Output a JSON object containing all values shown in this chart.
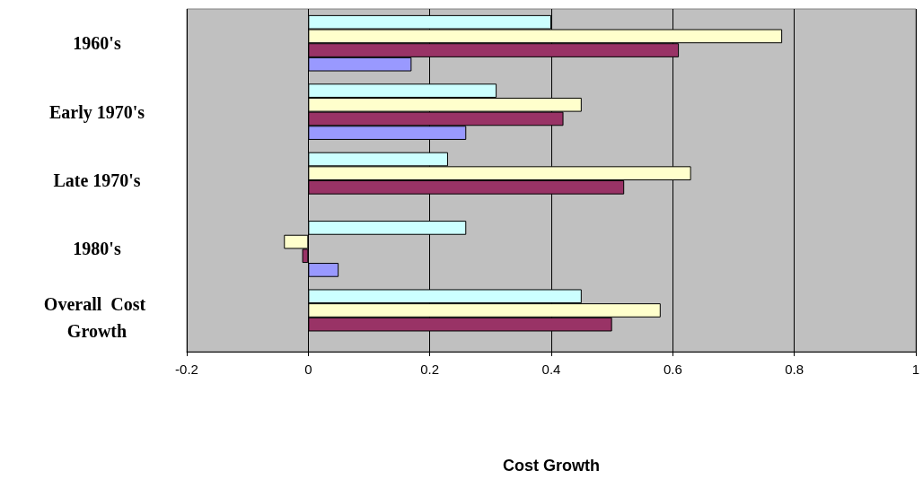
{
  "chart_data": {
    "type": "bar",
    "orientation": "horizontal",
    "xlabel": "Cost Growth",
    "categories": [
      "1960's",
      "Early 1970's",
      "Late 1970's",
      "1980's",
      "Overall  Cost Growth"
    ],
    "series": [
      {
        "color": "#ccffff",
        "values": [
          0.4,
          0.31,
          0.23,
          0.26,
          0.45
        ]
      },
      {
        "color": "#ffffcc",
        "values": [
          0.78,
          0.45,
          0.63,
          -0.04,
          0.58
        ]
      },
      {
        "color": "#993366",
        "values": [
          0.61,
          0.42,
          0.52,
          -0.01,
          0.5
        ]
      },
      {
        "color": "#9999ff",
        "values": [
          0.17,
          0.26,
          null,
          0.05,
          null
        ]
      }
    ],
    "xlim": [
      -0.2,
      1
    ],
    "xticks": [
      -0.2,
      0,
      0.2,
      0.4,
      0.6,
      0.8,
      1
    ],
    "grid": "x"
  }
}
